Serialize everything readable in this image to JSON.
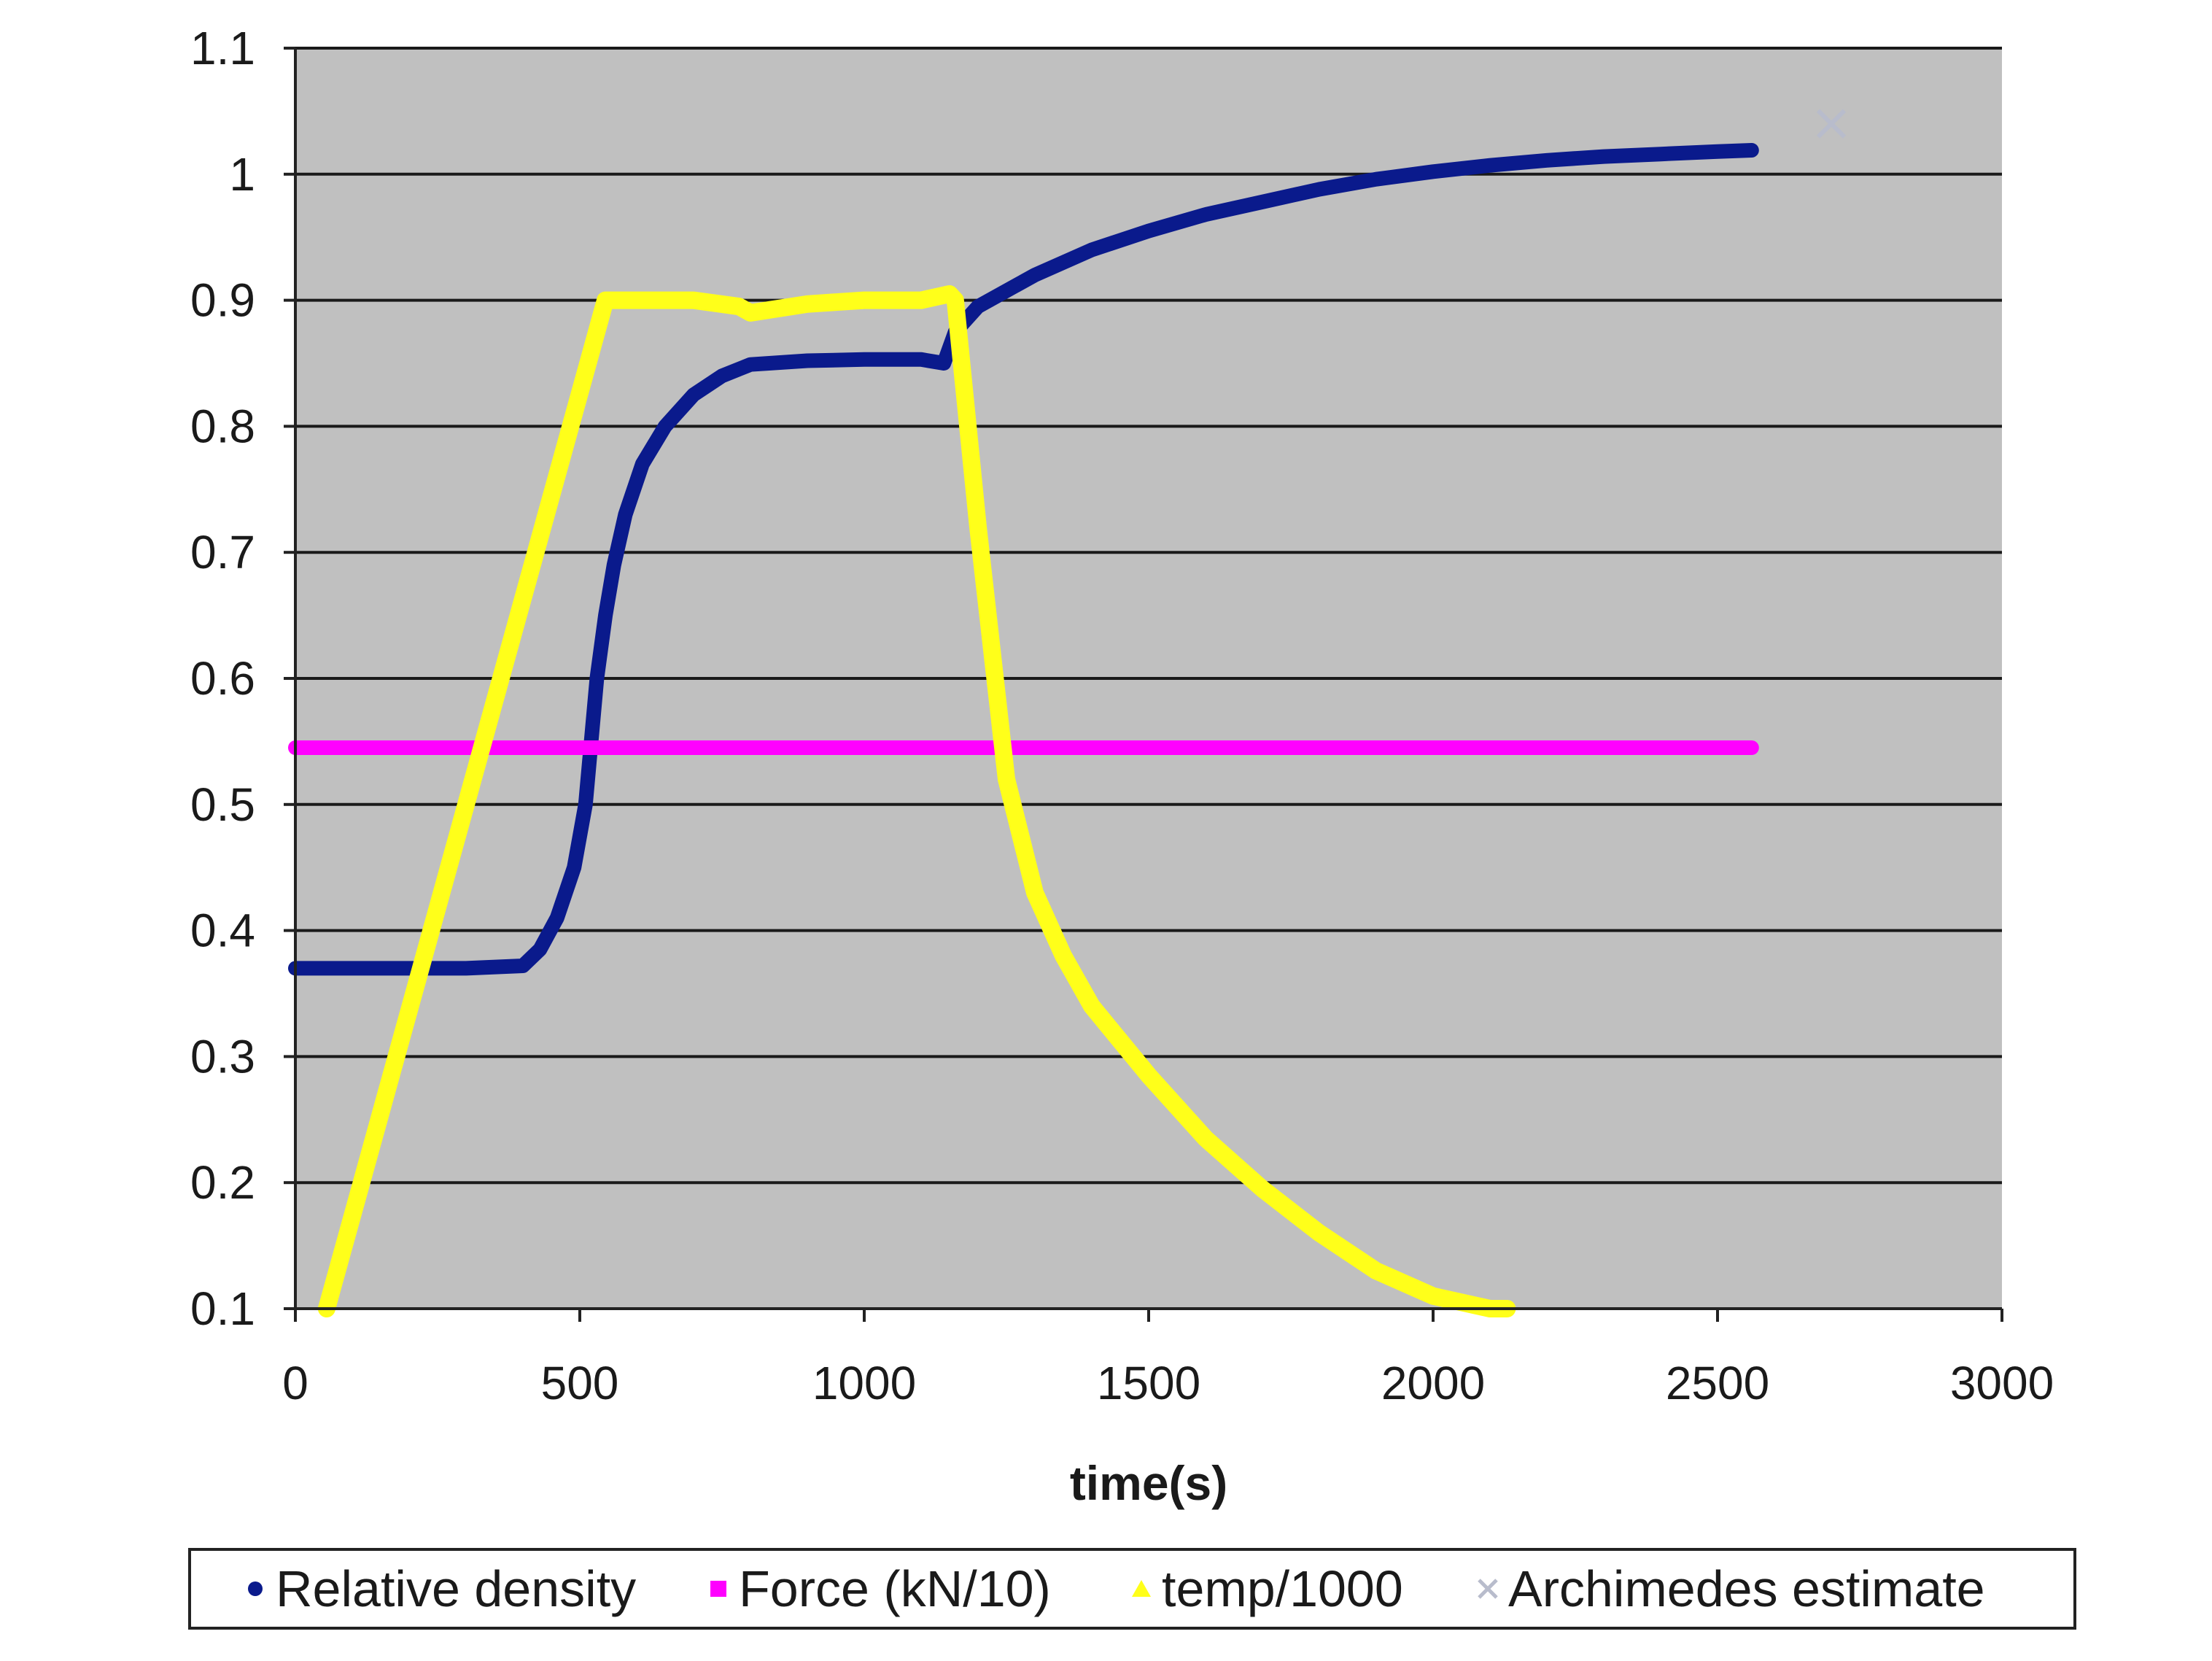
{
  "chart_data": {
    "type": "line",
    "title": "",
    "xlabel": "time(s)",
    "ylabel": "",
    "xlim": [
      0,
      3000
    ],
    "ylim": [
      0.1,
      1.1
    ],
    "x_ticks": [
      "0",
      "500",
      "1000",
      "1500",
      "2000",
      "2500",
      "3000"
    ],
    "y_ticks": [
      "0.1",
      "0.2",
      "0.3",
      "0.4",
      "0.5",
      "0.6",
      "0.7",
      "0.8",
      "0.9",
      "1",
      "1.1"
    ],
    "grid": "horizontal",
    "legend": "bottom",
    "series": [
      {
        "name": "Relative density",
        "color": "#0a1a8c",
        "marker": "dot",
        "x": [
          0,
          100,
          200,
          300,
          400,
          430,
          460,
          490,
          510,
          530,
          545,
          560,
          580,
          610,
          650,
          700,
          750,
          800,
          900,
          1000,
          1100,
          1140,
          1160,
          1200,
          1300,
          1400,
          1500,
          1600,
          1700,
          1800,
          1900,
          2000,
          2100,
          2200,
          2300,
          2400,
          2500,
          2560
        ],
        "y": [
          0.37,
          0.37,
          0.37,
          0.37,
          0.372,
          0.385,
          0.41,
          0.45,
          0.5,
          0.6,
          0.65,
          0.69,
          0.73,
          0.77,
          0.8,
          0.825,
          0.84,
          0.849,
          0.852,
          0.853,
          0.853,
          0.85,
          0.875,
          0.895,
          0.92,
          0.94,
          0.955,
          0.968,
          0.978,
          0.988,
          0.996,
          1.002,
          1.007,
          1.011,
          1.014,
          1.016,
          1.018,
          1.019
        ]
      },
      {
        "name": "Force (kN/10)",
        "color": "#ff00ff",
        "marker": "square",
        "x": [
          0,
          2560
        ],
        "y": [
          0.545,
          0.545
        ]
      },
      {
        "name": "temp/1000",
        "color": "#ffff1a",
        "marker": "triangle",
        "x": [
          55,
          545,
          600,
          700,
          780,
          800,
          900,
          1000,
          1100,
          1150,
          1160,
          1200,
          1250,
          1300,
          1350,
          1400,
          1500,
          1600,
          1700,
          1800,
          1900,
          2000,
          2100,
          2130
        ],
        "y": [
          0.1,
          0.9,
          0.9,
          0.9,
          0.895,
          0.89,
          0.897,
          0.9,
          0.9,
          0.905,
          0.9,
          0.72,
          0.52,
          0.43,
          0.38,
          0.34,
          0.285,
          0.235,
          0.195,
          0.16,
          0.13,
          0.11,
          0.1,
          0.1
        ]
      },
      {
        "name": "Archimedes estimate",
        "color": "#b8bccc",
        "marker": "x",
        "x": [
          2700
        ],
        "y": [
          1.04
        ]
      }
    ]
  }
}
